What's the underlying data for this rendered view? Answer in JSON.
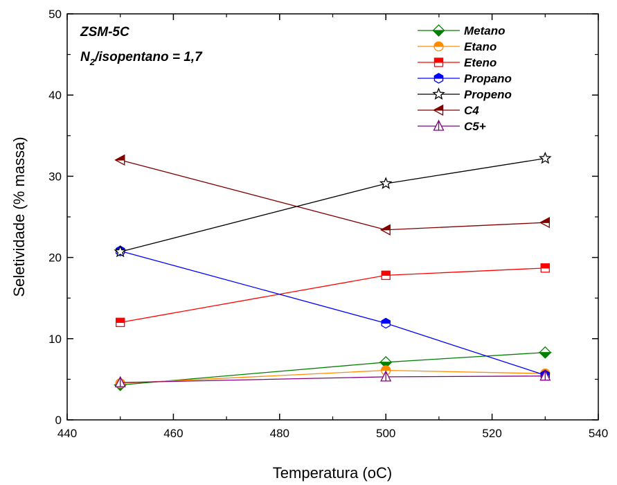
{
  "chart_data": {
    "type": "line",
    "title": "",
    "xlabel": "Temperatura (oC)",
    "ylabel": "Seletividade (% massa)",
    "xlim": [
      440,
      540
    ],
    "ylim": [
      0,
      50
    ],
    "xticks": [
      440,
      460,
      480,
      500,
      520,
      540
    ],
    "yticks": [
      0,
      10,
      20,
      30,
      40,
      50
    ],
    "grid": false,
    "legend_position": "top-right",
    "annotations": {
      "line1": "ZSM-5C",
      "line2_main": "N",
      "line2_sub": "2",
      "line2_rest": "/isopentano = 1,7"
    },
    "series": [
      {
        "name": "Metano",
        "color": "#008000",
        "marker": "diamond",
        "x": [
          450,
          500,
          530
        ],
        "y": [
          4.3,
          7.1,
          8.3
        ]
      },
      {
        "name": "Etano",
        "color": "#FF8C00",
        "marker": "circle-half",
        "x": [
          450,
          500,
          530
        ],
        "y": [
          4.5,
          6.1,
          5.7
        ]
      },
      {
        "name": "Eteno",
        "color": "#FF0000",
        "marker": "square-half",
        "x": [
          450,
          500,
          530
        ],
        "y": [
          12.0,
          17.8,
          18.7
        ]
      },
      {
        "name": "Propano",
        "color": "#0000FF",
        "marker": "hexagon-half",
        "x": [
          450,
          500,
          530
        ],
        "y": [
          20.8,
          11.9,
          5.5
        ]
      },
      {
        "name": "Propeno",
        "color": "#000000",
        "marker": "star",
        "x": [
          450,
          500,
          530
        ],
        "y": [
          20.7,
          29.1,
          32.2
        ]
      },
      {
        "name": "C4",
        "color": "#800000",
        "marker": "triangle-left",
        "x": [
          450,
          500,
          530
        ],
        "y": [
          32.0,
          23.4,
          24.3
        ]
      },
      {
        "name": "C5+",
        "color": "#800080",
        "marker": "triangle-up",
        "x": [
          450,
          500,
          530
        ],
        "y": [
          4.6,
          5.3,
          5.4
        ]
      }
    ]
  }
}
